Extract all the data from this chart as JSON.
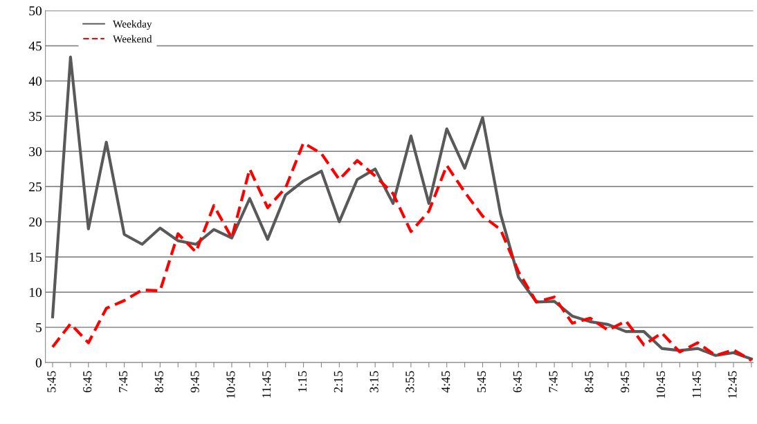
{
  "chart_data": {
    "type": "line",
    "categories": [
      "5:45",
      null,
      "6:45",
      null,
      "7:45",
      null,
      "8:45",
      null,
      "9:45",
      null,
      "10:45",
      null,
      "11:45",
      null,
      "1:15",
      null,
      "2:15",
      null,
      "3:15",
      null,
      "3:55",
      null,
      "4:45",
      null,
      "5:45",
      null,
      "6:45",
      null,
      "7:45",
      null,
      "8:45",
      null,
      "9:45",
      null,
      "10:45",
      null,
      "11:45",
      null,
      "12:45",
      null
    ],
    "series": [
      {
        "name": "Weekday",
        "color": "#595959",
        "line_style": "solid",
        "values": [
          6.5,
          43.4,
          19,
          31.3,
          18.2,
          16.8,
          19.1,
          17.3,
          16.8,
          18.9,
          17.7,
          23.3,
          17.5,
          23.8,
          25.8,
          27.2,
          20,
          26,
          27.5,
          22.6,
          32.2,
          22.6,
          33.2,
          27.6,
          34.8,
          21.1,
          12.1,
          8.6,
          8.7,
          6.6,
          5.8,
          5.4,
          4.4,
          4.4,
          2,
          1.7,
          2,
          1,
          1.4,
          0.5
        ]
      },
      {
        "name": "Weekend",
        "color": "#ff0000",
        "line_style": "dashed",
        "values": [
          2.2,
          5.5,
          2.8,
          7.7,
          8.8,
          10.3,
          10.2,
          18.3,
          15.7,
          22.3,
          17.7,
          27.5,
          22,
          24.8,
          31.2,
          29.7,
          26,
          28.7,
          26.5,
          24,
          18.6,
          21.5,
          28,
          24.2,
          20.8,
          18.9,
          12.9,
          8.6,
          9.3,
          5.6,
          6.3,
          4.6,
          5.9,
          2.5,
          4.2,
          1.5,
          2.8,
          1,
          1.8,
          0.3
        ]
      }
    ],
    "ylim": [
      0,
      50
    ],
    "yticks": [
      0,
      5,
      10,
      15,
      20,
      25,
      30,
      35,
      40,
      45,
      50
    ],
    "grid": "y",
    "legend": "top left",
    "marker": "none"
  }
}
